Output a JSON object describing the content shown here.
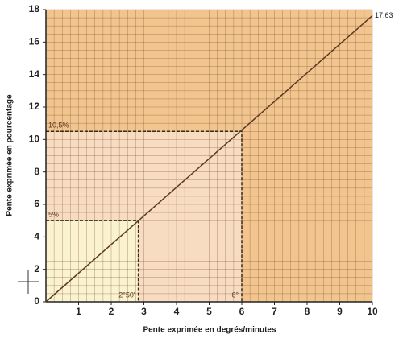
{
  "chart_data": {
    "type": "line",
    "x_label": "Pente exprimée en degrés/minutes",
    "y_label": "Pente exprimée en pourcentage",
    "x": [
      0,
      10
    ],
    "series": [
      {
        "values": [
          0,
          17.63
        ],
        "value_labels": [
          null,
          "17,63"
        ],
        "color": "#5a3a22"
      }
    ],
    "xlim": [
      0,
      10
    ],
    "ylim": [
      0,
      18
    ],
    "xticks": [
      1,
      2,
      3,
      4,
      5,
      6,
      7,
      8,
      9,
      10
    ],
    "yticks": [
      0,
      2,
      4,
      6,
      8,
      10,
      12,
      14,
      16,
      18
    ],
    "background": "#f2c48e",
    "grid": true,
    "minor_grid_step": [
      0.25,
      0.5
    ],
    "guides": [
      {
        "x": 6,
        "y": 10.5,
        "x_label": "6°",
        "y_label": "10,5%",
        "color": "#f8dcc2"
      },
      {
        "x": 2.83,
        "y": 5,
        "x_label": "2°50'",
        "y_label": "5%",
        "color": "#fbf3cf"
      }
    ]
  }
}
